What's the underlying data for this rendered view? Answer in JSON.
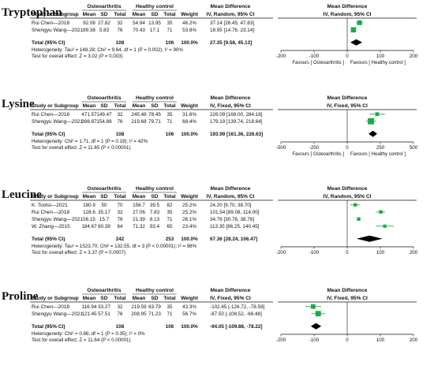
{
  "chart_data": [
    {
      "type": "forest",
      "biomarker": "Tryptophan",
      "group_header_1": "Osteoarthritis",
      "group_header_2": "Healthy control",
      "md_header": "Mean Difference",
      "plot_header": "Mean Difference",
      "col_headers": [
        "Study or Subgroup",
        "Mean",
        "SD",
        "Total",
        "Mean",
        "SD",
        "Total",
        "Weight"
      ],
      "method": "IV, Random, 95% CI",
      "plot_method": "IV, Random, 95% CI",
      "studies": [
        {
          "study": "Rui Chen—2018",
          "oa_mean": "92.08",
          "oa_sd": "27.82",
          "oa_total": "32",
          "hc_mean": "54.94",
          "hc_sd": "13.95",
          "hc_total": "35",
          "weight": "46.2%",
          "ci_text": "37.14 [26.45, 47.83]",
          "md": 37.14,
          "lo": 26.45,
          "hi": 47.83,
          "w": 46.2
        },
        {
          "study": "Shengyu Wang—2021",
          "oa_mean": "89.38",
          "oa_sd": "5.83",
          "oa_total": "76",
          "hc_mean": "70.43",
          "hc_sd": "17.1",
          "hc_total": "71",
          "weight": "53.8%",
          "ci_text": "18.95 [14.76, 23.14]",
          "md": 18.95,
          "lo": 14.76,
          "hi": 23.14,
          "w": 53.8
        }
      ],
      "total": {
        "label": "Total (95% CI)",
        "oa_total": "108",
        "hc_total": "106",
        "weight": "100.0%",
        "ci_text": "27.35 [9.58, 45.13]",
        "md": 27.35,
        "lo": 9.58,
        "hi": 45.13
      },
      "heterogeneity": "Heterogeneity: Tau² = 148.28; Chi² = 9.64, df = 1 (P = 0.002); I² = 90%",
      "overall_effect": "Test for overall effect: Z = 3.02 (P = 0.003)",
      "xlim": [
        -200,
        200
      ],
      "ticks": [
        "-200",
        "-100",
        "0",
        "100",
        "200"
      ],
      "tick_values": [
        -200,
        -100,
        0,
        100,
        200
      ],
      "favours_left": "Favours [ Osteoarthritis ]",
      "favours_right": "Favours [ Healthy control ]"
    },
    {
      "type": "forest",
      "biomarker": "Lysine",
      "group_header_1": "Osteoarthritis",
      "group_header_2": "Healthy control",
      "md_header": "Mean Difference",
      "plot_header": "Mean Difference",
      "col_headers": [
        "Study or Subgroup",
        "Mean",
        "SD",
        "Total",
        "Mean",
        "SD",
        "Total",
        "Weight"
      ],
      "method": "IV, Fixed, 95% CI",
      "plot_method": "IV, Fixed, 95% CI",
      "studies": [
        {
          "study": "Rui Chen—2018",
          "oa_mean": "471.57",
          "oa_sd": "149.47",
          "oa_total": "32",
          "hc_mean": "245.48",
          "hc_sd": "78.45",
          "hc_total": "35",
          "weight": "31.6%",
          "ci_text": "226.09 [168.00, 284.18]",
          "md": 226.09,
          "lo": 168.0,
          "hi": 284.18,
          "w": 31.6
        },
        {
          "study": "Shengyu Wang—2021",
          "oa_mean": "398.87",
          "oa_sd": "154.88",
          "oa_total": "76",
          "hc_mean": "219.68",
          "hc_sd": "79.71",
          "hc_total": "71",
          "weight": "68.4%",
          "ci_text": "179.19 [139.74, 218.64]",
          "md": 179.19,
          "lo": 139.74,
          "hi": 218.64,
          "w": 68.4
        }
      ],
      "total": {
        "label": "Total (95% CI)",
        "oa_total": "108",
        "hc_total": "106",
        "weight": "100.0%",
        "ci_text": "193.99 [161.36, 226.63]",
        "md": 193.99,
        "lo": 161.36,
        "hi": 226.63
      },
      "heterogeneity": "Heterogeneity: Chi² = 1.71, df = 1 (P = 0.19); I² = 42%",
      "overall_effect": "Test for overall effect: Z = 11.65 (P < 0.00001)",
      "xlim": [
        -500,
        500
      ],
      "ticks": [
        "-500",
        "-250",
        "0",
        "250",
        "500"
      ],
      "tick_values": [
        -500,
        -250,
        0,
        250,
        500
      ],
      "favours_left": "Favours [ Osteoarthritis ]",
      "favours_right": "Favours [ Healthy control ]"
    },
    {
      "type": "forest",
      "biomarker": "Leucine",
      "group_header_1": "Osteoarthritis",
      "group_header_2": "Healthy control",
      "md_header": "Mean Difference",
      "plot_header": "Mean Difference",
      "col_headers": [
        "Study or Subgroup",
        "Mean",
        "SD",
        "Total",
        "Mean",
        "SD",
        "Total",
        "Weight"
      ],
      "method": "IV, Random, 95% CI",
      "plot_method": "IV, Random, 95% CI",
      "studies": [
        {
          "study": "K. Tootsi—2021",
          "oa_mean": "180.9",
          "oa_sd": "50",
          "oa_total": "70",
          "hc_mean": "156.7",
          "hc_sd": "39.5",
          "hc_total": "82",
          "weight": "25.2%",
          "ci_text": "24.20 [9.70, 38.70]",
          "md": 24.2,
          "lo": 9.7,
          "hi": 38.7,
          "w": 25.2
        },
        {
          "study": "Rui Chen—2018",
          "oa_mean": "128.6",
          "oa_sd": "35.17",
          "oa_total": "32",
          "hc_mean": "27.06",
          "hc_sd": "7.83",
          "hc_total": "35",
          "weight": "25.2%",
          "ci_text": "101.54 [89.08, 114.00]",
          "md": 101.54,
          "lo": 89.08,
          "hi": 114.0,
          "w": 25.2
        },
        {
          "study": "Shengyu Wang—2021",
          "oa_mean": "56.15",
          "oa_sd": "15.7",
          "oa_total": "76",
          "hc_mean": "21.39",
          "hc_sd": "8.13",
          "hc_total": "71",
          "weight": "26.1%",
          "ci_text": "34.76 [30.76, 38.76]",
          "md": 34.76,
          "lo": 30.76,
          "hi": 38.76,
          "w": 26.1
        },
        {
          "study": "W. Zhang—2015",
          "oa_mean": "184.67",
          "oa_sd": "60.39",
          "oa_total": "64",
          "hc_mean": "71.32",
          "hc_sd": "93.4",
          "hc_total": "65",
          "weight": "23.4%",
          "ci_text": "113.35 [86.25, 140.45]",
          "md": 113.35,
          "lo": 86.25,
          "hi": 140.45,
          "w": 23.4
        }
      ],
      "total": {
        "label": "Total (95% CI)",
        "oa_total": "242",
        "hc_total": "253",
        "weight": "100.0%",
        "ci_text": "67.36 [28.24, 106.47]",
        "md": 67.36,
        "lo": 28.24,
        "hi": 106.47
      },
      "heterogeneity": "Heterogeneity: Tau² = 1523.70; Chi² = 132.55, df = 3 (P < 0.00001); I² = 98%",
      "overall_effect": "Test for overall effect: Z = 3.37 (P = 0.0007)",
      "xlim": [
        -200,
        200
      ],
      "ticks": [
        "-200",
        "-100",
        "0",
        "100",
        "200"
      ],
      "tick_values": [
        -200,
        -100,
        0,
        100,
        200
      ],
      "favours_left": "",
      "favours_right": ""
    },
    {
      "type": "forest",
      "biomarker": "Proline",
      "group_header_1": "Osteoarthritis",
      "group_header_2": "Healthy control",
      "md_header": "Mean Difference",
      "plot_header": "Mean Difference",
      "col_headers": [
        "Study or Subgroup",
        "Mean",
        "SD",
        "Total",
        "Mean",
        "SD",
        "Total",
        "Weight"
      ],
      "method": "IV, Fixed, 95% CI",
      "plot_method": "IV, Fixed, 95% CI",
      "studies": [
        {
          "study": "Rui Chen—2018",
          "oa_mean": "116.94",
          "oa_sd": "33.27",
          "oa_total": "32",
          "hc_mean": "219.59",
          "hc_sd": "63.79",
          "hc_total": "35",
          "weight": "43.3%",
          "ci_text": "-102.65 [-126.72, -78.58]",
          "md": -102.65,
          "lo": -126.72,
          "hi": -78.58,
          "w": 43.3
        },
        {
          "study": "Shengyu Wang—2021",
          "oa_mean": "121.45",
          "oa_sd": "57.51",
          "oa_total": "76",
          "hc_mean": "208.95",
          "hc_sd": "71.23",
          "hc_total": "71",
          "weight": "56.7%",
          "ci_text": "-87.50 [-108.52, -66.48]",
          "md": -87.5,
          "lo": -108.52,
          "hi": -66.48,
          "w": 56.7
        }
      ],
      "total": {
        "label": "Total (95% CI)",
        "oa_total": "108",
        "hc_total": "106",
        "weight": "100.0%",
        "ci_text": "-94.05 [-109.88, -78.22]",
        "md": -94.05,
        "lo": -109.88,
        "hi": -78.22
      },
      "heterogeneity": "Heterogeneity: Chi² = 0.86, df = 1 (P = 0.35); I² = 0%",
      "overall_effect": "Test for overall effect: Z = 11.64 (P < 0.00001)",
      "xlim": [
        -200,
        200
      ],
      "ticks": [
        "-200",
        "-100",
        "0",
        "100",
        "200"
      ],
      "tick_values": [
        -200,
        -100,
        0,
        100,
        200
      ],
      "favours_left": "",
      "favours_right": ""
    }
  ],
  "colors": {
    "study_marker": "#1fa84a",
    "total_diamond": "#000000",
    "lines": "#111111",
    "text": "#111111"
  }
}
